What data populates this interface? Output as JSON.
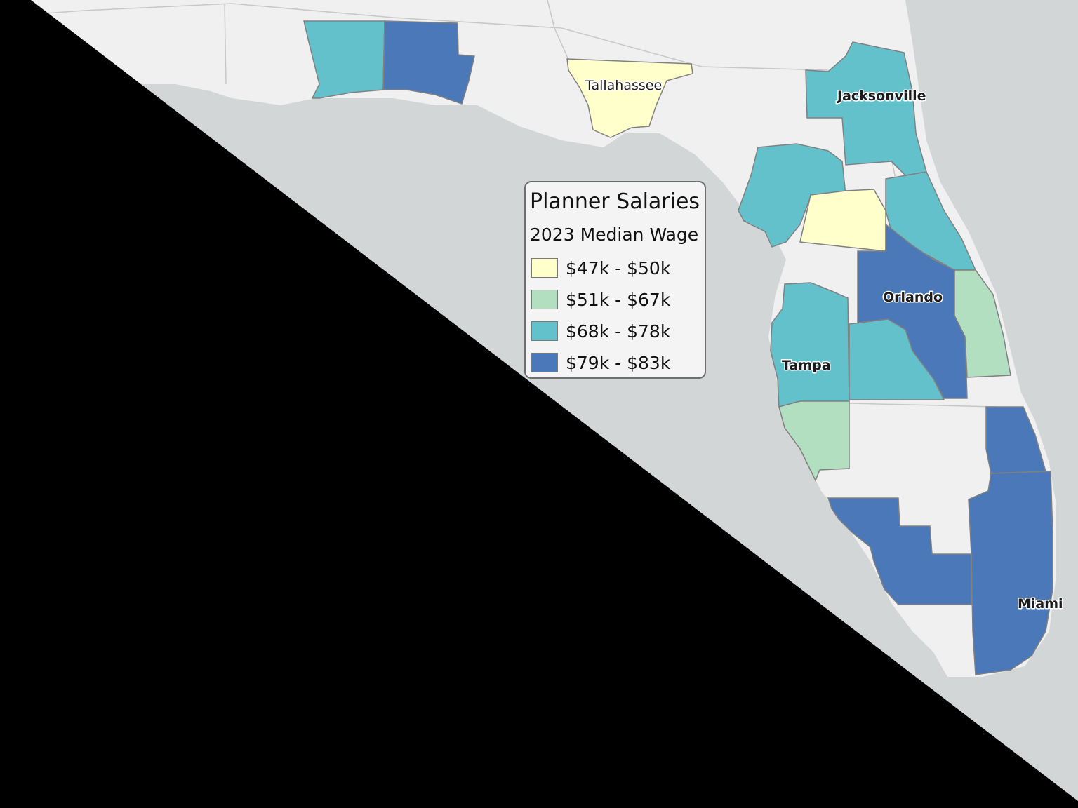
{
  "legend": {
    "title": "Planner Salaries",
    "subtitle": "2023 Median Wage",
    "classes": [
      {
        "label": "$47k - $50k",
        "color": "#ffffcc"
      },
      {
        "label": "$51k - $67k",
        "color": "#b2dfc0"
      },
      {
        "label": "$68k - $78k",
        "color": "#63c1cc"
      },
      {
        "label": "$79k - $83k",
        "color": "#4a78b8"
      }
    ]
  },
  "cities": [
    {
      "name": "Tallahassee"
    },
    {
      "name": "Jacksonville"
    },
    {
      "name": "Orlando"
    },
    {
      "name": "Tampa"
    },
    {
      "name": "Miami"
    }
  ],
  "colors": {
    "land": "#f0f0f0",
    "water": "#d3d6d6",
    "county_border": "#808080",
    "mask": "#000000"
  }
}
